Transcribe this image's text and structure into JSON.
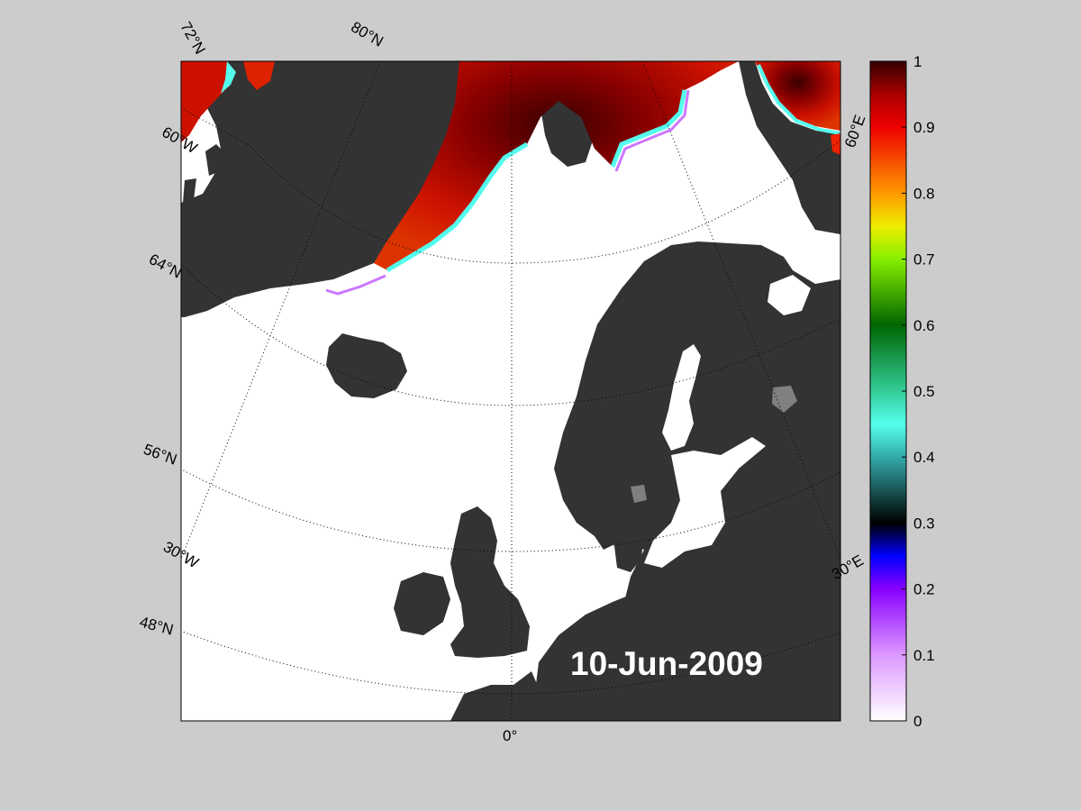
{
  "map": {
    "date_label": "10-Jun-2009",
    "graticule_labels": {
      "lat_72": "72°N",
      "lat_80": "80°N",
      "lon_60w": "60°W",
      "lat_64": "64°N",
      "lat_56": "56°N",
      "lon_30w": "30°W",
      "lat_48": "48°N",
      "lon_0": "0°",
      "lon_30e": "30°E",
      "lon_60e": "60°E"
    },
    "colors": {
      "ocean": "#ffffff",
      "land": "#333333",
      "lake": "#808080",
      "background": "#cccccc"
    }
  },
  "colorbar": {
    "min": 0,
    "max": 1,
    "ticks": [
      "0",
      "0.1",
      "0.2",
      "0.3",
      "0.4",
      "0.5",
      "0.6",
      "0.7",
      "0.8",
      "0.9",
      "1"
    ],
    "stops": [
      {
        "v": 0.0,
        "c": "#ffffff"
      },
      {
        "v": 0.1,
        "c": "#dd99ff"
      },
      {
        "v": 0.2,
        "c": "#8800ff"
      },
      {
        "v": 0.25,
        "c": "#0000ff"
      },
      {
        "v": 0.3,
        "c": "#000000"
      },
      {
        "v": 0.4,
        "c": "#33aaaa"
      },
      {
        "v": 0.45,
        "c": "#55ffee"
      },
      {
        "v": 0.5,
        "c": "#33cc99"
      },
      {
        "v": 0.6,
        "c": "#006600"
      },
      {
        "v": 0.7,
        "c": "#88ee00"
      },
      {
        "v": 0.75,
        "c": "#eeee00"
      },
      {
        "v": 0.8,
        "c": "#ff9900"
      },
      {
        "v": 0.9,
        "c": "#ee0000"
      },
      {
        "v": 0.95,
        "c": "#aa0000"
      },
      {
        "v": 1.0,
        "c": "#330000"
      }
    ]
  }
}
